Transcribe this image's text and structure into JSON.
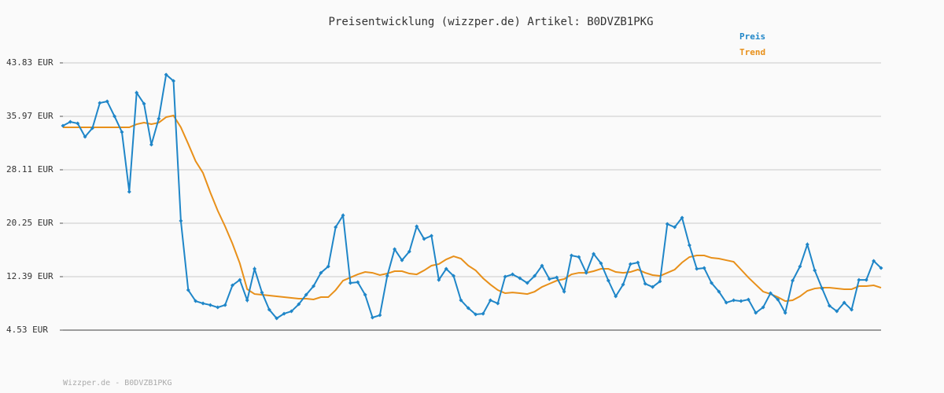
{
  "chart_data": {
    "type": "line",
    "title": "Preisentwicklung (wizzper.de) Artikel: B0DVZB1PKG",
    "footer": "Wizzper.de - B0DVZB1PKG",
    "ylim": [
      4.53,
      43.83
    ],
    "yticks": [
      {
        "value": 4.53,
        "label": "4.53 EUR"
      },
      {
        "value": 12.39,
        "label": "12.39 EUR"
      },
      {
        "value": 20.25,
        "label": "20.25 EUR"
      },
      {
        "value": 28.11,
        "label": "28.11 EUR"
      },
      {
        "value": 35.97,
        "label": "35.97 EUR"
      },
      {
        "value": 43.83,
        "label": "43.83 EUR"
      }
    ],
    "grid": true,
    "legend": "top-right",
    "series": [
      {
        "name": "Preis",
        "color": "#1f86c8",
        "markers": true,
        "values": [
          34.58,
          35.16,
          34.93,
          32.96,
          34.24,
          37.93,
          38.17,
          35.97,
          33.66,
          24.87,
          39.44,
          37.82,
          31.81,
          35.62,
          42.1,
          41.17,
          20.59,
          10.42,
          8.8,
          8.46,
          8.22,
          7.88,
          8.22,
          11.12,
          11.92,
          8.92,
          13.54,
          10.07,
          7.53,
          6.26,
          6.95,
          7.3,
          8.34,
          9.73,
          11.0,
          12.96,
          13.89,
          19.67,
          21.4,
          11.46,
          11.58,
          9.73,
          6.38,
          6.72,
          12.5,
          16.43,
          14.81,
          16.09,
          19.79,
          17.94,
          18.4,
          11.92,
          13.54,
          12.5,
          8.92,
          7.76,
          6.84,
          6.95,
          8.92,
          8.46,
          12.39,
          12.73,
          12.16,
          11.46,
          12.5,
          14.01,
          12.04,
          12.27,
          10.19,
          15.51,
          15.28,
          12.96,
          15.74,
          14.35,
          11.81,
          9.5,
          11.23,
          14.24,
          14.47,
          11.35,
          10.88,
          11.69,
          20.13,
          19.67,
          21.06,
          17.01,
          13.54,
          13.66,
          11.46,
          10.19,
          8.57,
          8.92,
          8.8,
          9.03,
          7.07,
          7.88,
          9.96,
          9.03,
          7.07,
          11.81,
          13.89,
          17.13,
          13.31,
          10.65,
          8.11,
          7.3,
          8.57,
          7.53,
          11.92,
          11.92,
          14.7,
          13.66
        ]
      },
      {
        "name": "Trend",
        "color": "#e8901a",
        "markers": false,
        "values": [
          34.35,
          34.35,
          34.35,
          34.35,
          34.35,
          34.35,
          34.35,
          34.35,
          34.35,
          34.35,
          34.81,
          35.04,
          34.81,
          35.04,
          35.85,
          36.08,
          34.35,
          31.92,
          29.38,
          27.65,
          24.76,
          22.1,
          19.79,
          17.24,
          14.35,
          10.54,
          9.84,
          9.73,
          9.61,
          9.5,
          9.38,
          9.27,
          9.15,
          9.15,
          9.04,
          9.38,
          9.38,
          10.42,
          11.81,
          12.27,
          12.73,
          13.08,
          12.96,
          12.62,
          12.85,
          13.2,
          13.2,
          12.85,
          12.73,
          13.31,
          14.01,
          14.24,
          14.93,
          15.39,
          15.05,
          14.01,
          13.31,
          12.16,
          11.23,
          10.42,
          9.96,
          10.07,
          9.96,
          9.84,
          10.19,
          10.88,
          11.35,
          11.81,
          12.04,
          12.73,
          12.96,
          12.96,
          13.2,
          13.54,
          13.54,
          13.08,
          12.96,
          13.08,
          13.43,
          12.96,
          12.62,
          12.5,
          12.96,
          13.43,
          14.47,
          15.28,
          15.51,
          15.51,
          15.16,
          15.05,
          14.81,
          14.58,
          13.43,
          12.27,
          11.23,
          10.19,
          9.84,
          9.38,
          8.8,
          8.92,
          9.5,
          10.31,
          10.65,
          10.77,
          10.77,
          10.65,
          10.54,
          10.54,
          11.0,
          11.0,
          11.12,
          10.77
        ]
      }
    ]
  }
}
